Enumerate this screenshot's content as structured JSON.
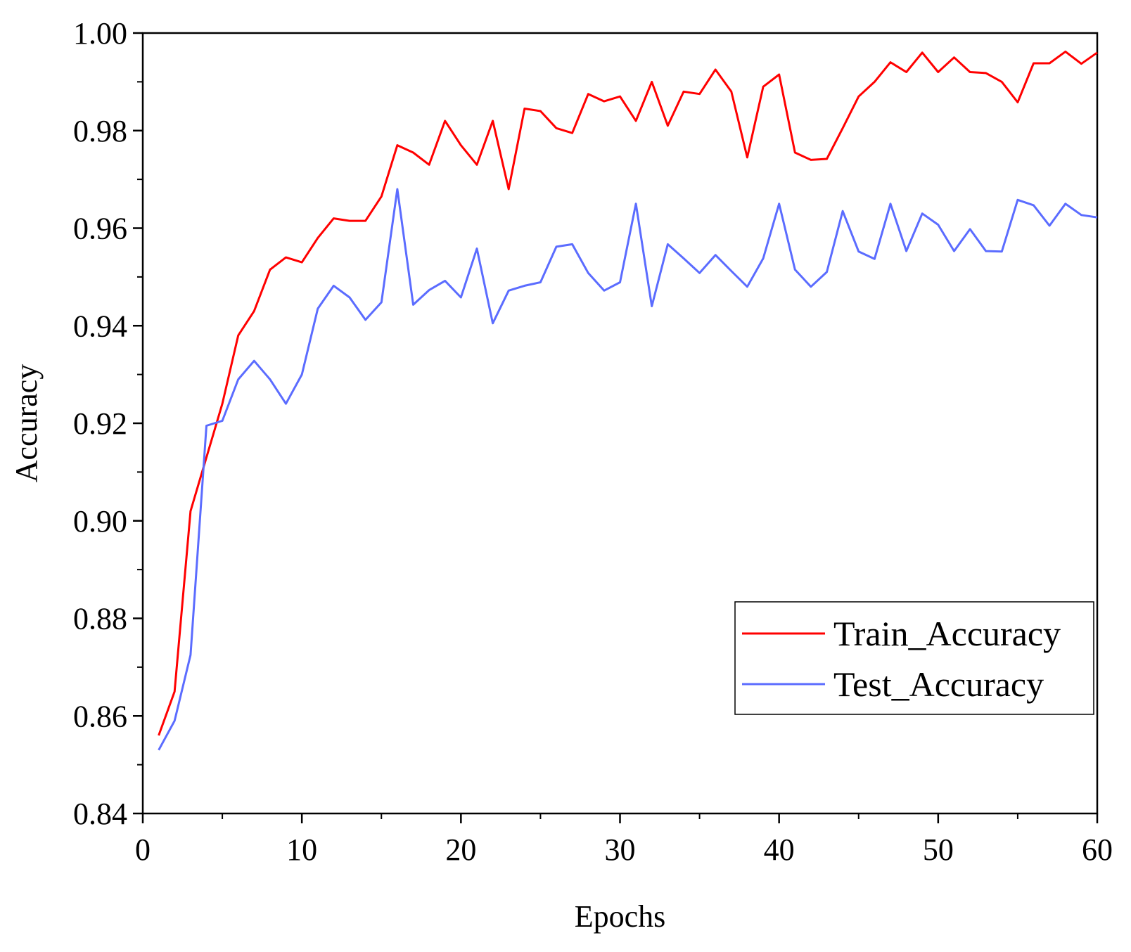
{
  "chart_data": {
    "type": "line",
    "xlabel": "Epochs",
    "ylabel": "Accuracy",
    "xlim": [
      0,
      60
    ],
    "ylim": [
      0.84,
      1.0
    ],
    "xticks": [
      0,
      10,
      20,
      30,
      40,
      50,
      60
    ],
    "yticks": [
      0.84,
      0.86,
      0.88,
      0.9,
      0.92,
      0.94,
      0.96,
      0.98,
      1.0
    ],
    "ytick_labels": [
      "0.84",
      "0.86",
      "0.88",
      "0.90",
      "0.92",
      "0.94",
      "0.96",
      "0.98",
      "1.00"
    ],
    "grid": false,
    "legend_position": "lower-right",
    "x": [
      1,
      2,
      3,
      4,
      5,
      6,
      7,
      8,
      9,
      10,
      11,
      12,
      13,
      14,
      15,
      16,
      17,
      18,
      19,
      20,
      21,
      22,
      23,
      24,
      25,
      26,
      27,
      28,
      29,
      30,
      31,
      32,
      33,
      34,
      35,
      36,
      37,
      38,
      39,
      40,
      41,
      42,
      43,
      44,
      45,
      46,
      47,
      48,
      49,
      50,
      51,
      52,
      53,
      54,
      55,
      56,
      57,
      58,
      59,
      60
    ],
    "series": [
      {
        "name": "Train_Accuracy",
        "color": "#ff0000",
        "values": [
          0.856,
          0.865,
          0.902,
          0.913,
          0.924,
          0.938,
          0.943,
          0.9515,
          0.954,
          0.953,
          0.958,
          0.962,
          0.9615,
          0.9615,
          0.9665,
          0.977,
          0.9755,
          0.973,
          0.982,
          0.977,
          0.973,
          0.982,
          0.968,
          0.9845,
          0.984,
          0.9805,
          0.9795,
          0.9875,
          0.986,
          0.987,
          0.982,
          0.99,
          0.981,
          0.988,
          0.9875,
          0.9925,
          0.988,
          0.9745,
          0.989,
          0.9915,
          0.9755,
          0.974,
          0.9742,
          0.9805,
          0.987,
          0.99,
          0.994,
          0.992,
          0.996,
          0.992,
          0.995,
          0.992,
          0.9918,
          0.99,
          0.9858,
          0.9938,
          0.9938,
          0.9962,
          0.9937,
          0.996
        ]
      },
      {
        "name": "Test_Accuracy",
        "color": "#5b6cff",
        "values": [
          0.853,
          0.859,
          0.8725,
          0.9195,
          0.9205,
          0.929,
          0.9328,
          0.929,
          0.924,
          0.93,
          0.9435,
          0.9482,
          0.9458,
          0.9412,
          0.9448,
          0.968,
          0.9443,
          0.9473,
          0.9492,
          0.9458,
          0.9558,
          0.9405,
          0.9472,
          0.9482,
          0.9489,
          0.9562,
          0.9567,
          0.9508,
          0.9472,
          0.9489,
          0.965,
          0.944,
          0.9567,
          0.9538,
          0.9508,
          0.9545,
          0.9512,
          0.948,
          0.9538,
          0.965,
          0.9515,
          0.948,
          0.951,
          0.9635,
          0.9552,
          0.9537,
          0.965,
          0.9553,
          0.963,
          0.9607,
          0.9553,
          0.9598,
          0.9553,
          0.9552,
          0.9658,
          0.9647,
          0.9605,
          0.965,
          0.9627,
          0.9622
        ]
      }
    ]
  }
}
